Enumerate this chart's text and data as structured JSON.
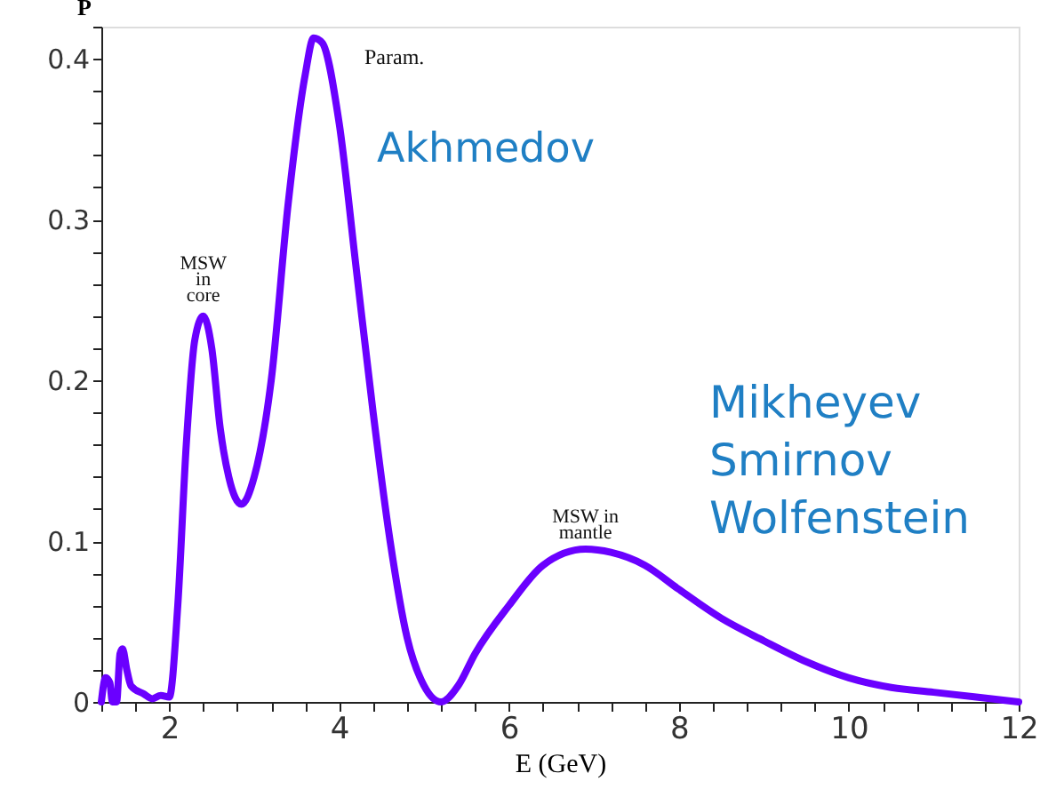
{
  "chart_data": {
    "type": "line",
    "xlabel": "E (GeV)",
    "ylabel": "P",
    "x": [
      1.2,
      1.25,
      1.3,
      1.33,
      1.38,
      1.42,
      1.45,
      1.5,
      1.55,
      1.7,
      1.8,
      1.9,
      2.0,
      2.1,
      2.2,
      2.3,
      2.4,
      2.5,
      2.6,
      2.7,
      2.85,
      3.0,
      3.2,
      3.4,
      3.6,
      3.7,
      3.8,
      4.0,
      4.2,
      4.4,
      4.6,
      4.8,
      5.0,
      5.2,
      5.4,
      5.6,
      6.0,
      6.4,
      6.9,
      7.2,
      7.6,
      8.0,
      8.5,
      9.0,
      9.5,
      10.0,
      10.5,
      11.0,
      11.5,
      12.0
    ],
    "series": [
      {
        "color": "#6a00ff",
        "values": [
          0,
          0.015,
          0.012,
          0.0,
          0.0,
          0.03,
          0.033,
          0.02,
          0.01,
          0.005,
          0.002,
          0.004,
          0.003,
          0.06,
          0.16,
          0.225,
          0.24,
          0.22,
          0.17,
          0.14,
          0.123,
          0.14,
          0.2,
          0.31,
          0.39,
          0.413,
          0.41,
          0.36,
          0.27,
          0.18,
          0.1,
          0.04,
          0.01,
          0.0,
          0.01,
          0.03,
          0.06,
          0.085,
          0.095,
          0.093,
          0.085,
          0.07,
          0.052,
          0.038,
          0.025,
          0.015,
          0.009,
          0.006,
          0.003,
          0.0
        ]
      }
    ],
    "xlim": [
      1.2,
      12
    ],
    "ylim": [
      0,
      0.42
    ],
    "xticks": [
      {
        "value": 1.2,
        "label": null
      },
      {
        "value": 1.6,
        "label": null
      },
      2,
      {
        "value": 2.4,
        "label": null
      },
      {
        "value": 2.8,
        "label": null
      },
      {
        "value": 3.2,
        "label": null
      },
      {
        "value": 3.6,
        "label": null
      },
      4,
      {
        "value": 4.4,
        "label": null
      },
      {
        "value": 4.8,
        "label": null
      },
      {
        "value": 5.2,
        "label": null
      },
      {
        "value": 5.6,
        "label": null
      },
      6,
      {
        "value": 6.4,
        "label": null
      },
      {
        "value": 6.8,
        "label": null
      },
      {
        "value": 7.2,
        "label": null
      },
      {
        "value": 7.6,
        "label": null
      },
      8,
      {
        "value": 8.4,
        "label": null
      },
      {
        "value": 8.8,
        "label": null
      },
      {
        "value": 9.2,
        "label": null
      },
      {
        "value": 9.6,
        "label": null
      },
      10,
      {
        "value": 10.4,
        "label": null
      },
      {
        "value": 10.8,
        "label": null
      },
      {
        "value": 11.2,
        "label": null
      },
      {
        "value": 11.6,
        "label": null
      },
      12
    ],
    "yticks": [
      0,
      {
        "value": 0.02,
        "label": null
      },
      {
        "value": 0.04,
        "label": null
      },
      {
        "value": 0.06,
        "label": null
      },
      {
        "value": 0.08,
        "label": null
      },
      0.1,
      {
        "value": 0.12,
        "label": null
      },
      {
        "value": 0.14,
        "label": null
      },
      {
        "value": 0.16,
        "label": null
      },
      {
        "value": 0.18,
        "label": null
      },
      0.2,
      {
        "value": 0.22,
        "label": null
      },
      {
        "value": 0.24,
        "label": null
      },
      {
        "value": 0.26,
        "label": null
      },
      {
        "value": 0.28,
        "label": null
      },
      0.3,
      {
        "value": 0.32,
        "label": null
      },
      {
        "value": 0.34,
        "label": null
      },
      {
        "value": 0.36,
        "label": null
      },
      {
        "value": 0.38,
        "label": null
      },
      0.4,
      {
        "value": 0.42,
        "label": null
      }
    ],
    "grid": false,
    "marker": "none",
    "line_style": "solid",
    "annotations": [
      "Param.",
      {
        "text": "MSW\nin\ncore",
        "x": 2.4,
        "y": 0.245
      },
      {
        "text": "MSW in\nmantle",
        "x": 6.9,
        "y": 0.097
      },
      "Akhmedov",
      "Mikheyev\nSmirnov\nWolfenstein"
    ]
  }
}
